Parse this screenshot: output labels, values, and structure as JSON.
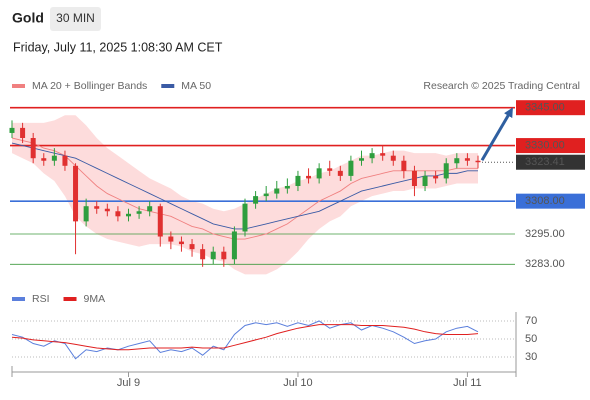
{
  "chart_data": {
    "type": "candlestick",
    "title": "Gold",
    "interval": "30 MIN",
    "subtitle": "Friday, July 11, 2025 1:08:30 AM CET",
    "source": "Research © 2025 Trading Central",
    "categories": [
      null,
      null,
      null,
      null,
      null,
      null,
      null,
      null,
      null,
      null,
      null,
      "Jul 9",
      null,
      null,
      null,
      null,
      null,
      null,
      null,
      null,
      null,
      null,
      null,
      null,
      null,
      null,
      null,
      "Jul 10",
      null,
      null,
      null,
      null,
      null,
      null,
      null,
      null,
      null,
      null,
      null,
      null,
      null,
      null,
      null,
      "Jul 11",
      null
    ],
    "open": [
      3335,
      3337,
      3333,
      3325,
      3324,
      3326,
      3322,
      3300,
      3306,
      3305,
      3304,
      3302,
      3303,
      3304,
      3306,
      3294,
      3292,
      3291,
      3289,
      3285,
      3288,
      3285,
      3296,
      3307,
      3310,
      3311,
      3313,
      3314,
      3318,
      3317,
      3321,
      3320,
      3318,
      3324,
      3325,
      3327,
      3326,
      3324,
      3320,
      3314,
      3318,
      3317,
      3323,
      3325,
      3324
    ],
    "high": [
      3340,
      3339,
      3335,
      3327,
      3329,
      3328,
      3323,
      3309,
      3308,
      3307,
      3306,
      3305,
      3306,
      3308,
      3307,
      3296,
      3294,
      3293,
      3291,
      3290,
      3290,
      3298,
      3309,
      3312,
      3314,
      3316,
      3317,
      3320,
      3321,
      3323,
      3324,
      3322,
      3326,
      3328,
      3329,
      3330,
      3328,
      3326,
      3322,
      3320,
      3320,
      3325,
      3327,
      3327,
      3326
    ],
    "low": [
      3333,
      3331,
      3323,
      3322,
      3322,
      3320,
      3287,
      3298,
      3303,
      3302,
      3300,
      3300,
      3301,
      3302,
      3290,
      3289,
      3288,
      3286,
      3282,
      3283,
      3282,
      3283,
      3294,
      3305,
      3308,
      3309,
      3311,
      3312,
      3315,
      3315,
      3318,
      3316,
      3316,
      3322,
      3323,
      3324,
      3322,
      3317,
      3310,
      3312,
      3315,
      3315,
      3321,
      3322,
      3321
    ],
    "close": [
      3337,
      3333,
      3325,
      3324,
      3326,
      3322,
      3300,
      3306,
      3305,
      3304,
      3302,
      3303,
      3304,
      3306,
      3294,
      3292,
      3291,
      3289,
      3285,
      3288,
      3285,
      3296,
      3307,
      3310,
      3311,
      3313,
      3314,
      3318,
      3317,
      3321,
      3320,
      3318,
      3324,
      3325,
      3327,
      3326,
      3324,
      3320,
      3314,
      3318,
      3317,
      3323,
      3325,
      3324,
      3323.41
    ],
    "up_color": "#2e9e3e",
    "down_color": "#e03030",
    "series": [
      {
        "name": "MA 20 + Bollinger Bands",
        "color": "#f08080",
        "values": [
          3333,
          3332,
          3331,
          3329,
          3328,
          3326,
          3322,
          3318,
          3314,
          3311,
          3309,
          3307,
          3305,
          3304,
          3303,
          3302,
          3300,
          3298,
          3297,
          3295,
          3294,
          3293,
          3293,
          3294,
          3295,
          3297,
          3299,
          3302,
          3305,
          3308,
          3310,
          3312,
          3315,
          3317,
          3318,
          3319,
          3320,
          3320,
          3320,
          3320,
          3320,
          3320,
          3321,
          3321,
          3321
        ]
      },
      {
        "name": "MA 50",
        "color": "#3b5ba5",
        "values": [
          3331,
          3330,
          3329,
          3328,
          3327,
          3326,
          3325,
          3323,
          3321,
          3319,
          3317,
          3315,
          3313,
          3311,
          3309,
          3307,
          3305,
          3303,
          3301,
          3299,
          3298,
          3297,
          3297,
          3298,
          3299,
          3300,
          3301,
          3302,
          3303,
          3304,
          3306,
          3308,
          3310,
          3312,
          3313,
          3314,
          3315,
          3316,
          3317,
          3318,
          3318,
          3319,
          3319,
          3320,
          3320
        ]
      }
    ],
    "bollinger": {
      "color": "#fddcdc",
      "upper": [
        3339,
        3339,
        3339,
        3339,
        3340,
        3342,
        3342,
        3338,
        3333,
        3329,
        3326,
        3323,
        3320,
        3317,
        3315,
        3313,
        3310,
        3308,
        3307,
        3305,
        3304,
        3305,
        3307,
        3309,
        3311,
        3313,
        3314,
        3316,
        3317,
        3319,
        3320,
        3322,
        3324,
        3326,
        3326,
        3327,
        3328,
        3328,
        3327,
        3327,
        3327,
        3326,
        3327,
        3327,
        3327
      ],
      "lower": [
        3327,
        3325,
        3323,
        3319,
        3316,
        3310,
        3302,
        3298,
        3295,
        3293,
        3292,
        3291,
        3290,
        3291,
        3291,
        3291,
        3290,
        3288,
        3287,
        3285,
        3284,
        3281,
        3279,
        3279,
        3279,
        3281,
        3284,
        3288,
        3293,
        3297,
        3300,
        3302,
        3306,
        3308,
        3310,
        3311,
        3312,
        3312,
        3313,
        3313,
        3313,
        3314,
        3315,
        3315,
        3315
      ]
    },
    "ylim": [
      3276,
      3352
    ],
    "levels": [
      {
        "value": 3345,
        "label": "3345.00",
        "color": "#e02020",
        "boxed": true
      },
      {
        "value": 3330,
        "label": "3330.00",
        "color": "#e02020",
        "boxed": true
      },
      {
        "value": 3323.41,
        "label": "3323.41",
        "color": "#333333",
        "boxed": true
      },
      {
        "value": 3308,
        "label": "3308.00",
        "color": "#3a6fd8",
        "boxed": true
      },
      {
        "value": 3295,
        "label": "3295.00",
        "color": "#3f9a3f",
        "boxed": false
      },
      {
        "value": 3283,
        "label": "3283.00",
        "color": "#3f9a3f",
        "boxed": false
      }
    ],
    "rsi": {
      "series": [
        {
          "name": "RSI",
          "color": "#5b7fdc",
          "values": [
            55,
            52,
            45,
            42,
            48,
            45,
            28,
            38,
            36,
            40,
            38,
            42,
            45,
            48,
            35,
            38,
            36,
            40,
            32,
            42,
            38,
            55,
            65,
            68,
            66,
            68,
            64,
            68,
            65,
            70,
            62,
            66,
            68,
            60,
            65,
            62,
            58,
            52,
            45,
            48,
            50,
            58,
            62,
            64,
            58
          ]
        },
        {
          "name": "9MA",
          "color": "#e02020",
          "values": [
            52,
            51,
            49,
            48,
            47,
            46,
            44,
            42,
            40,
            39,
            38,
            38,
            39,
            40,
            40,
            40,
            40,
            41,
            40,
            40,
            40,
            43,
            46,
            49,
            52,
            56,
            59,
            62,
            64,
            66,
            66,
            66,
            66,
            65,
            65,
            65,
            64,
            63,
            61,
            58,
            56,
            55,
            55,
            55,
            56
          ]
        }
      ],
      "ylim": [
        20,
        80
      ],
      "yticks": [
        30,
        50,
        70
      ]
    }
  }
}
